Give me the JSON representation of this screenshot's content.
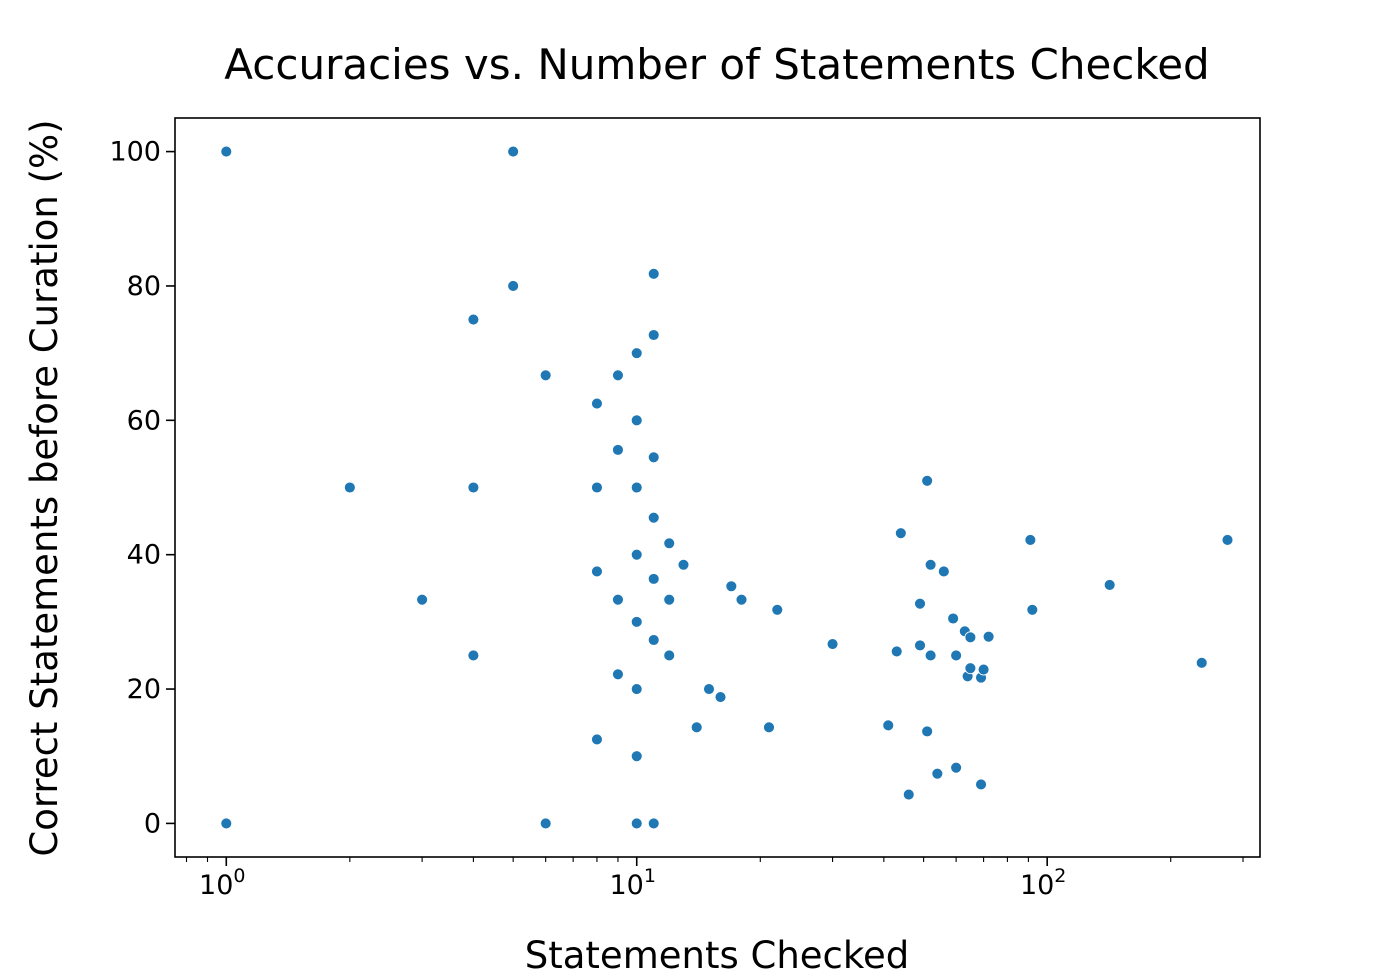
{
  "chart_data": {
    "type": "scatter",
    "title": "Accuracies vs. Number of Statements Checked",
    "xlabel": "Statements Checked",
    "ylabel": "Correct Statements before Curation (%)",
    "xscale": "log",
    "xlim": [
      0.75,
      330
    ],
    "ylim": [
      -5,
      105
    ],
    "xticks": [
      {
        "base": "10",
        "exp": "0"
      },
      {
        "base": "10",
        "exp": "1"
      },
      {
        "base": "10",
        "exp": "2"
      }
    ],
    "yticks": [
      "0",
      "20",
      "40",
      "60",
      "80",
      "100"
    ],
    "grid": false,
    "legend": "none",
    "color": "#1f77b4",
    "points": [
      [
        1,
        100
      ],
      [
        1,
        0
      ],
      [
        2,
        50
      ],
      [
        3,
        33.3
      ],
      [
        4,
        75
      ],
      [
        4,
        50
      ],
      [
        4,
        25
      ],
      [
        5,
        100
      ],
      [
        5,
        80
      ],
      [
        6,
        66.7
      ],
      [
        6,
        0
      ],
      [
        8,
        62.5
      ],
      [
        8,
        50
      ],
      [
        8,
        37.5
      ],
      [
        8,
        12.5
      ],
      [
        9,
        66.7
      ],
      [
        9,
        55.6
      ],
      [
        9,
        33.3
      ],
      [
        9,
        22.2
      ],
      [
        10,
        70
      ],
      [
        10,
        60
      ],
      [
        10,
        50
      ],
      [
        10,
        40
      ],
      [
        10,
        30
      ],
      [
        10,
        20
      ],
      [
        10,
        10
      ],
      [
        10,
        0
      ],
      [
        11,
        81.8
      ],
      [
        11,
        72.7
      ],
      [
        11,
        54.5
      ],
      [
        11,
        45.5
      ],
      [
        11,
        36.4
      ],
      [
        11,
        27.3
      ],
      [
        11,
        0
      ],
      [
        12,
        41.7
      ],
      [
        12,
        33.3
      ],
      [
        12,
        25
      ],
      [
        13,
        38.5
      ],
      [
        14,
        14.3
      ],
      [
        15,
        20
      ],
      [
        16,
        18.8
      ],
      [
        17,
        35.3
      ],
      [
        18,
        33.3
      ],
      [
        21,
        14.3
      ],
      [
        22,
        31.8
      ],
      [
        30,
        26.7
      ],
      [
        41,
        14.6
      ],
      [
        43,
        25.6
      ],
      [
        44,
        43.2
      ],
      [
        46,
        4.3
      ],
      [
        49,
        32.7
      ],
      [
        49,
        26.5
      ],
      [
        51,
        51
      ],
      [
        51,
        13.7
      ],
      [
        52,
        38.5
      ],
      [
        52,
        25
      ],
      [
        54,
        7.4
      ],
      [
        56,
        37.5
      ],
      [
        59,
        30.5
      ],
      [
        60,
        25
      ],
      [
        60,
        8.3
      ],
      [
        63,
        28.6
      ],
      [
        64,
        21.9
      ],
      [
        65,
        27.7
      ],
      [
        65,
        23.1
      ],
      [
        69,
        21.7
      ],
      [
        69,
        5.8
      ],
      [
        70,
        22.9
      ],
      [
        72,
        27.8
      ],
      [
        91,
        42.2
      ],
      [
        92,
        31.8
      ],
      [
        142,
        35.5
      ],
      [
        238,
        23.9
      ],
      [
        275,
        42.2
      ]
    ]
  }
}
